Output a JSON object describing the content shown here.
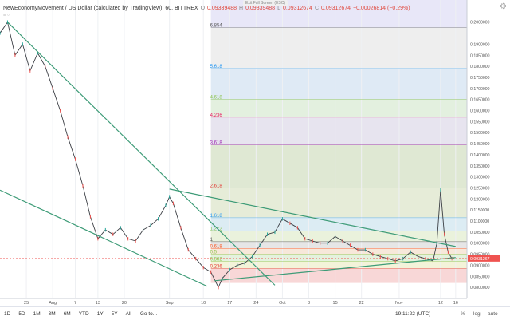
{
  "header": {
    "symbol": "NewEconomyMovement / US Dollar (calculated by TradingView), 60, BITTREX",
    "ohlc": [
      {
        "label": "O",
        "value": "0.09339488"
      },
      {
        "label": "H",
        "value": "0.09339488"
      },
      {
        "label": "L",
        "value": "0.09312674"
      },
      {
        "label": "C",
        "value": "0.09312674"
      }
    ],
    "change": "−0.00026814 (−0.29%)",
    "exit_fullscreen": "Exit Full Screen (ESC)",
    "indicator_label": "≡ ○"
  },
  "colors": {
    "up": "#26a69a",
    "down": "#ef5350",
    "trendline": "#3d9b77",
    "grid": "#eef0f3",
    "price_tag": "#ef5350"
  },
  "chart_data": {
    "type": "line",
    "title": "NewEconomyMovement / US Dollar (calculated by TradingView), 60, BITTREX",
    "xlabel": "",
    "ylabel": "",
    "xlim": [
      "2017-07-18",
      "2017-11-19"
    ],
    "ylim": [
      0.075,
      0.21
    ],
    "x_ticks": [
      {
        "label": "25",
        "date": "2017-07-25"
      },
      {
        "label": "Aug",
        "date": "2017-08-01"
      },
      {
        "label": "7",
        "date": "2017-08-07"
      },
      {
        "label": "13",
        "date": "2017-08-13"
      },
      {
        "label": "20",
        "date": "2017-08-20"
      },
      {
        "label": "Sep",
        "date": "2017-09-01"
      },
      {
        "label": "10",
        "date": "2017-09-10"
      },
      {
        "label": "17",
        "date": "2017-09-17"
      },
      {
        "label": "24",
        "date": "2017-09-24"
      },
      {
        "label": "Oct",
        "date": "2017-10-01"
      },
      {
        "label": "8",
        "date": "2017-10-08"
      },
      {
        "label": "15",
        "date": "2017-10-15"
      },
      {
        "label": "22",
        "date": "2017-10-22"
      },
      {
        "label": "Nov",
        "date": "2017-11-01"
      },
      {
        "label": "12",
        "date": "2017-11-12"
      },
      {
        "label": "16",
        "date": "2017-11-16"
      }
    ],
    "y_ticks": [
      "0.2100000",
      "0.2000000",
      "0.1900000",
      "0.1850000",
      "0.1800000",
      "0.1750000",
      "0.1700000",
      "0.1650000",
      "0.1600000",
      "0.1550000",
      "0.1500000",
      "0.1450000",
      "0.1400000",
      "0.1350000",
      "0.1300000",
      "0.1250000",
      "0.1200000",
      "0.1150000",
      "0.1100000",
      "0.1050000",
      "0.1000000",
      "0.0950000",
      "0.0900000",
      "0.0850000",
      "0.0800000",
      "0.0750000"
    ],
    "current_price": {
      "value": 0.0931,
      "label": "0.0931267"
    },
    "price_series": {
      "name": "",
      "x": [
        "2017-07-18",
        "2017-07-20",
        "2017-07-22",
        "2017-07-24",
        "2017-07-26",
        "2017-07-28",
        "2017-07-30",
        "2017-08-01",
        "2017-08-03",
        "2017-08-05",
        "2017-08-07",
        "2017-08-09",
        "2017-08-11",
        "2017-08-13",
        "2017-08-15",
        "2017-08-17",
        "2017-08-19",
        "2017-08-21",
        "2017-08-23",
        "2017-08-25",
        "2017-08-27",
        "2017-08-29",
        "2017-08-31",
        "2017-09-01",
        "2017-09-02",
        "2017-09-04",
        "2017-09-06",
        "2017-09-08",
        "2017-09-10",
        "2017-09-12",
        "2017-09-14",
        "2017-09-15",
        "2017-09-17",
        "2017-09-19",
        "2017-09-21",
        "2017-09-23",
        "2017-09-25",
        "2017-09-27",
        "2017-09-29",
        "2017-10-01",
        "2017-10-03",
        "2017-10-05",
        "2017-10-07",
        "2017-10-09",
        "2017-10-11",
        "2017-10-13",
        "2017-10-15",
        "2017-10-17",
        "2017-10-19",
        "2017-10-21",
        "2017-10-23",
        "2017-10-25",
        "2017-10-27",
        "2017-10-29",
        "2017-10-31",
        "2017-11-02",
        "2017-11-04",
        "2017-11-06",
        "2017-11-08",
        "2017-11-10",
        "2017-11-11",
        "2017-11-12",
        "2017-11-13",
        "2017-11-14",
        "2017-11-15"
      ],
      "values": [
        0.195,
        0.2,
        0.185,
        0.19,
        0.178,
        0.186,
        0.18,
        0.17,
        0.16,
        0.148,
        0.138,
        0.126,
        0.112,
        0.102,
        0.106,
        0.104,
        0.107,
        0.102,
        0.101,
        0.106,
        0.108,
        0.111,
        0.117,
        0.121,
        0.118,
        0.107,
        0.097,
        0.093,
        0.089,
        0.087,
        0.08,
        0.084,
        0.088,
        0.09,
        0.091,
        0.094,
        0.099,
        0.104,
        0.105,
        0.111,
        0.109,
        0.107,
        0.102,
        0.101,
        0.1,
        0.1,
        0.103,
        0.101,
        0.099,
        0.097,
        0.097,
        0.095,
        0.094,
        0.093,
        0.092,
        0.093,
        0.096,
        0.094,
        0.093,
        0.092,
        0.1,
        0.124,
        0.104,
        0.096,
        0.093
      ]
    },
    "fib_levels": [
      {
        "label": "0.236",
        "value": 0.0885,
        "color": "#e53935"
      },
      {
        "label": "0.382",
        "value": 0.0918,
        "color": "#8bc34a"
      },
      {
        "label": "0.5",
        "value": 0.095,
        "color": "#8bc34a"
      },
      {
        "label": "0.618",
        "value": 0.0976,
        "color": "#ff5722"
      },
      {
        "label": "1",
        "value": 0.1007,
        "color": "#555555"
      },
      {
        "label": "1.272",
        "value": 0.1055,
        "color": "#8bc34a"
      },
      {
        "label": "1.618",
        "value": 0.1115,
        "color": "#2196f3"
      },
      {
        "label": "2.618",
        "value": 0.125,
        "color": "#e53935"
      },
      {
        "label": "3.618",
        "value": 0.1445,
        "color": "#9c27b0"
      },
      {
        "label": "4.236",
        "value": 0.157,
        "color": "#e91e63"
      },
      {
        "label": "4.618",
        "value": 0.165,
        "color": "#8bc34a"
      },
      {
        "label": "5.618",
        "value": 0.179,
        "color": "#2196f3"
      },
      {
        "label": "6.854",
        "value": 0.1975,
        "color": "#555555"
      }
    ],
    "fib_bands": [
      {
        "from": 0.082,
        "to": 0.0885,
        "color": "#f8d7d7"
      },
      {
        "from": 0.0885,
        "to": 0.0918,
        "color": "#f3f3d9"
      },
      {
        "from": 0.0918,
        "to": 0.095,
        "color": "#e4f2de"
      },
      {
        "from": 0.095,
        "to": 0.0976,
        "color": "#f7e8da"
      },
      {
        "from": 0.0976,
        "to": 0.1007,
        "color": "#e6e6e6"
      },
      {
        "from": 0.1007,
        "to": 0.1055,
        "color": "#eaf2dc"
      },
      {
        "from": 0.1055,
        "to": 0.1115,
        "color": "#dcecf3"
      },
      {
        "from": 0.1115,
        "to": 0.125,
        "color": "#e6ecd8"
      },
      {
        "from": 0.125,
        "to": 0.1445,
        "color": "#dfe8d3"
      },
      {
        "from": 0.1445,
        "to": 0.157,
        "color": "#e7e4ef"
      },
      {
        "from": 0.157,
        "to": 0.165,
        "color": "#e3f0df"
      },
      {
        "from": 0.165,
        "to": 0.179,
        "color": "#dfeaf5"
      },
      {
        "from": 0.179,
        "to": 0.1975,
        "color": "#eeeeee"
      },
      {
        "from": 0.1975,
        "to": 0.21,
        "color": "#e8e7f8"
      }
    ],
    "fib_start": "2017-09-12",
    "fib_end": "2017-11-19",
    "trendlines": [
      {
        "name": "upper-descending",
        "from": {
          "x": "2017-07-20",
          "y": 0.2
        },
        "to": {
          "x": "2017-09-29",
          "y": 0.081
        }
      },
      {
        "name": "lower-descending",
        "from": {
          "x": "2017-07-18",
          "y": 0.124
        },
        "to": {
          "x": "2017-09-11",
          "y": 0.0805
        }
      },
      {
        "name": "triangle-upper",
        "from": {
          "x": "2017-09-01",
          "y": 0.1245
        },
        "to": {
          "x": "2017-11-16",
          "y": 0.0985
        }
      },
      {
        "name": "triangle-lower",
        "from": {
          "x": "2017-09-13",
          "y": 0.083
        },
        "to": {
          "x": "2017-11-16",
          "y": 0.0935
        }
      }
    ]
  },
  "bottombar": {
    "timeframes": [
      "1D",
      "5D",
      "1M",
      "3M",
      "6M",
      "YTD",
      "1Y",
      "5Y",
      "All"
    ],
    "goto": "Go to...",
    "clock": "19:11:22 (UTC)",
    "percent": "%",
    "log": "log",
    "auto": "auto"
  }
}
